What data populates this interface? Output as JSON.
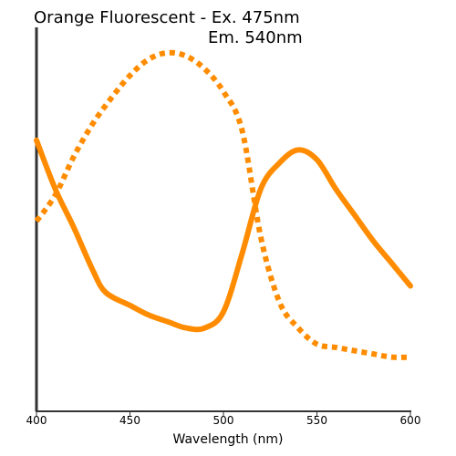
{
  "chart_data": {
    "type": "line",
    "title_lines": [
      "Orange Fluorescent - Ex. 475nm",
      "Em. 540nm"
    ],
    "xlabel": "Wavelength (nm)",
    "ylabel": "",
    "xlim": [
      400,
      600
    ],
    "ylim": [
      0,
      1
    ],
    "x_ticks": [
      400,
      450,
      500,
      550,
      600
    ],
    "grid": false,
    "color": "#ff8c00",
    "series": [
      {
        "style": "dotted",
        "points": [
          [
            400,
            0.5
          ],
          [
            410,
            0.58
          ],
          [
            420,
            0.7
          ],
          [
            430,
            0.8
          ],
          [
            440,
            0.88
          ],
          [
            450,
            0.95
          ],
          [
            460,
            1.0
          ],
          [
            470,
            1.02
          ],
          [
            480,
            1.01
          ],
          [
            490,
            0.97
          ],
          [
            500,
            0.9
          ],
          [
            510,
            0.78
          ],
          [
            520,
            0.45
          ],
          [
            530,
            0.25
          ],
          [
            540,
            0.17
          ],
          [
            550,
            0.12
          ],
          [
            560,
            0.11
          ],
          [
            570,
            0.1
          ],
          [
            580,
            0.09
          ],
          [
            590,
            0.08
          ],
          [
            600,
            0.08
          ]
        ]
      },
      {
        "style": "solid",
        "points": [
          [
            400,
            0.75
          ],
          [
            410,
            0.6
          ],
          [
            420,
            0.48
          ],
          [
            430,
            0.35
          ],
          [
            437,
            0.28
          ],
          [
            450,
            0.24
          ],
          [
            460,
            0.21
          ],
          [
            470,
            0.19
          ],
          [
            480,
            0.17
          ],
          [
            490,
            0.17
          ],
          [
            500,
            0.22
          ],
          [
            510,
            0.4
          ],
          [
            520,
            0.6
          ],
          [
            530,
            0.68
          ],
          [
            540,
            0.72
          ],
          [
            550,
            0.69
          ],
          [
            560,
            0.6
          ],
          [
            570,
            0.52
          ],
          [
            580,
            0.44
          ],
          [
            590,
            0.37
          ],
          [
            600,
            0.3
          ]
        ]
      }
    ]
  }
}
